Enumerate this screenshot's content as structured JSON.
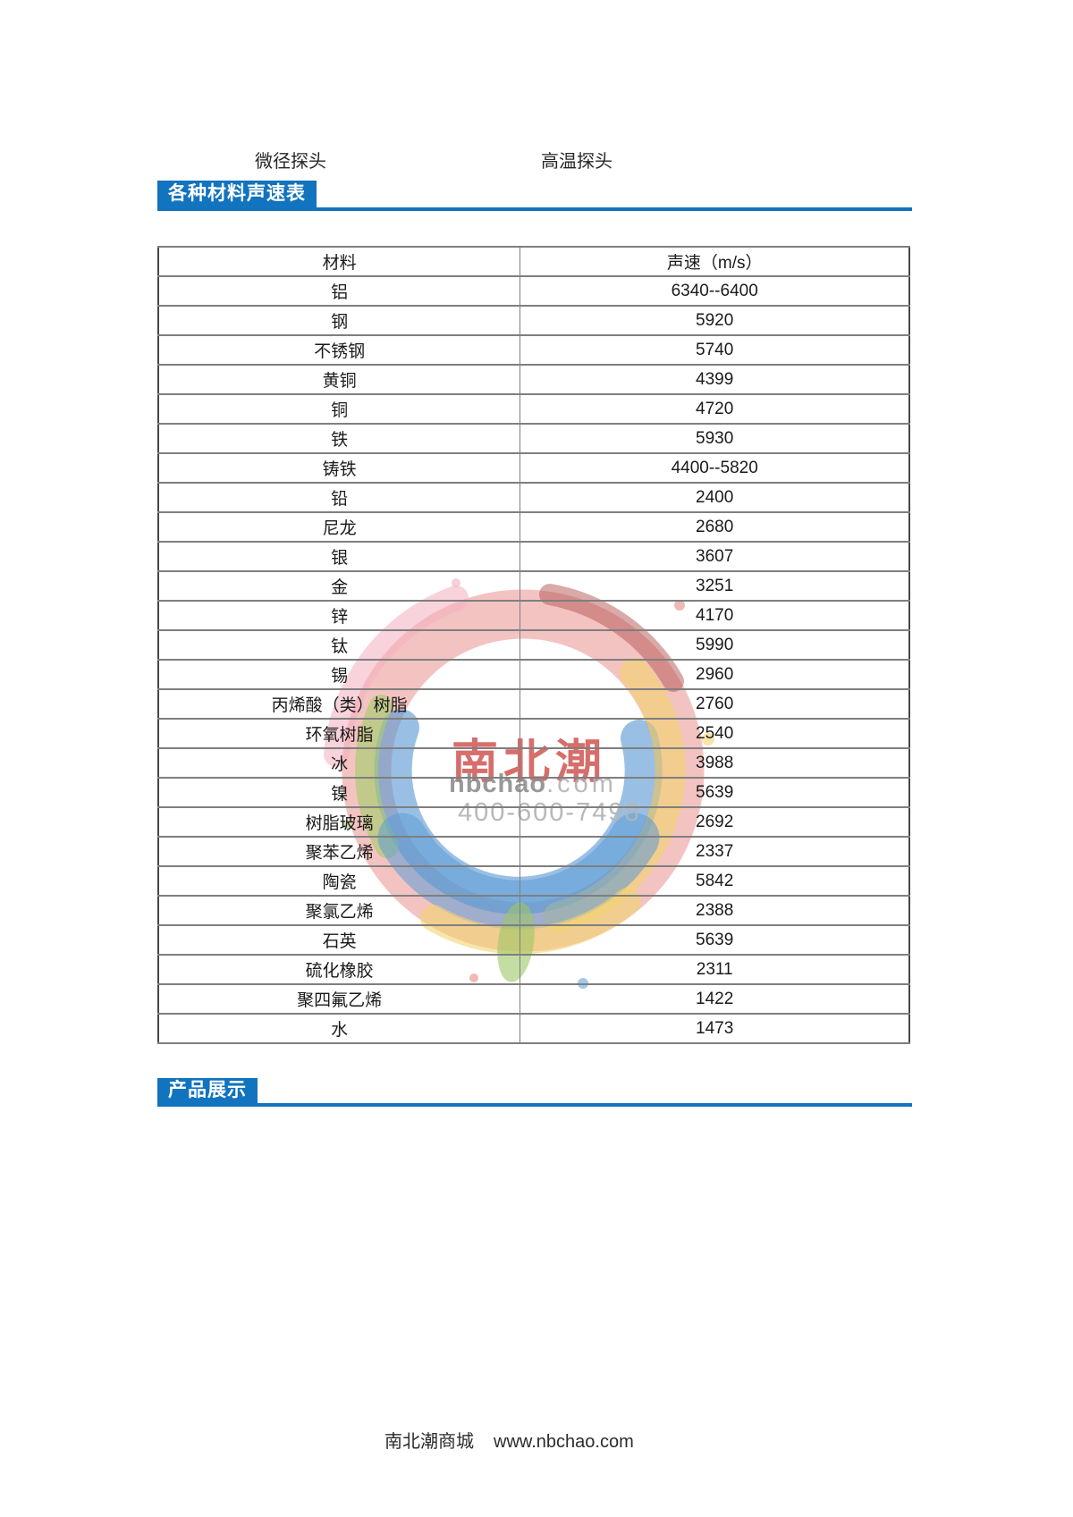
{
  "colors": {
    "accent_blue": "#1273BE",
    "table_border_outer": "#464646",
    "table_border_inner": "#7F7F7F",
    "watermark_red": "#CD4A47",
    "watermark_gray": "#A8A8A8"
  },
  "top_labels": {
    "left": "微径探头",
    "right": "高温探头"
  },
  "sections": {
    "velocity_title": "各种材料声速表",
    "products_title": "产品展示"
  },
  "table": {
    "headers": [
      "材料",
      "声速（m/s）"
    ],
    "rows": [
      [
        "铝",
        "6340--6400"
      ],
      [
        "钢",
        "5920"
      ],
      [
        "不锈钢",
        "5740"
      ],
      [
        "黄铜",
        "4399"
      ],
      [
        "铜",
        "4720"
      ],
      [
        "铁",
        "5930"
      ],
      [
        "铸铁",
        "4400--5820"
      ],
      [
        "铅",
        "2400"
      ],
      [
        "尼龙",
        "2680"
      ],
      [
        "银",
        "3607"
      ],
      [
        "金",
        "3251"
      ],
      [
        "锌",
        "4170"
      ],
      [
        "钛",
        "5990"
      ],
      [
        "锡",
        "2960"
      ],
      [
        "丙烯酸（类）树脂",
        "2760"
      ],
      [
        "环氧树脂",
        "2540"
      ],
      [
        "冰",
        "3988"
      ],
      [
        "镍",
        "5639"
      ],
      [
        "树脂玻璃",
        "2692"
      ],
      [
        "聚苯乙烯",
        "2337"
      ],
      [
        "陶瓷",
        "5842"
      ],
      [
        "聚氯乙烯",
        "2388"
      ],
      [
        "石英",
        "5639"
      ],
      [
        "硫化橡胶",
        "2311"
      ],
      [
        "聚四氟乙烯",
        "1422"
      ],
      [
        "水",
        "1473"
      ]
    ]
  },
  "watermark": {
    "brand": "南北潮",
    "domain_bold": "nbchao",
    "domain_light": ".com",
    "phone": "400-600-7498"
  },
  "footer": {
    "store_name": "南北潮商城",
    "website": "www.nbchao.com"
  }
}
